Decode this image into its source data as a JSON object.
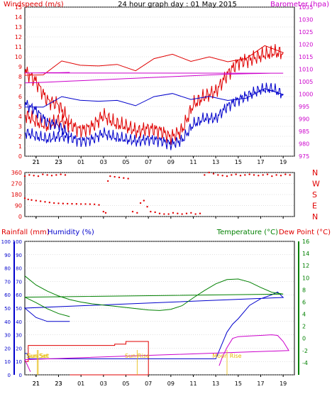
{
  "chart_data": [
    {
      "type": "line",
      "title": "24 hour graph day : 01 May 2015",
      "ylabel_left": "Windspeed (m/s)",
      "ylabel_right": "Barometer (hpa)",
      "ylim_left": [
        0,
        15
      ],
      "ylim_right": [
        975,
        1035
      ],
      "yticks_left": [
        "0",
        "1",
        "2",
        "3",
        "4",
        "5",
        "6",
        "7",
        "8",
        "9",
        "10",
        "11",
        "12",
        "13",
        "14",
        "15"
      ],
      "yticks_right": [
        "975",
        "980",
        "985",
        "990",
        "995",
        "1000",
        "1005",
        "1010",
        "1015",
        "1020",
        "1025",
        "1030",
        "1035"
      ],
      "x_hours": [
        20,
        21,
        22,
        23,
        0,
        1,
        2,
        3,
        4,
        5,
        6,
        7,
        8,
        9,
        10,
        11,
        12,
        13,
        14,
        15,
        16,
        17,
        18,
        19,
        20,
        21,
        22,
        23,
        24
      ],
      "xticks": [
        "21",
        "23",
        "01",
        "03",
        "05",
        "07",
        "09",
        "11",
        "13",
        "15",
        "17",
        "19",
        "21",
        "23"
      ],
      "series": [
        {
          "name": "Gust",
          "color": "#e00000",
          "axis": "left",
          "values": [
            4.2,
            3.5,
            3.0,
            3.6,
            3.2,
            2.6,
            3.0,
            4.1,
            3.3,
            3.0,
            2.5,
            2.8,
            2.6,
            1.9,
            2.6,
            5.2,
            6.0,
            6.5,
            8.2,
            9.5,
            9.7,
            10.1,
            10.4,
            10.4,
            8.6,
            7.5,
            5.6,
            5.2,
            3.4
          ]
        },
        {
          "name": "Average",
          "color": "#0000cc",
          "axis": "left",
          "values": [
            2.4,
            2.0,
            1.7,
            2.0,
            1.9,
            1.5,
            1.7,
            2.3,
            1.9,
            1.7,
            1.5,
            1.7,
            1.6,
            1.2,
            1.6,
            3.2,
            3.8,
            3.8,
            5.0,
            5.7,
            6.2,
            6.7,
            6.8,
            6.2,
            5.3,
            4.6,
            3.4,
            3.1,
            2.0
          ]
        },
        {
          "name": "Barometer",
          "color": "#cc00cc",
          "axis": "right",
          "values": [
            1004.5,
            1004.6,
            1004.8,
            1005.0,
            1005.2,
            1005.4,
            1005.6,
            1005.8,
            1006.0,
            1006.2,
            1006.4,
            1006.6,
            1006.8,
            1007.0,
            1007.2,
            1007.4,
            1007.6,
            1007.8,
            1008.0,
            1008.1,
            1008.2,
            1008.3,
            1008.4,
            1008.4,
            1008.5,
            1008.5,
            1008.6,
            1008.6,
            1008.7
          ]
        }
      ]
    },
    {
      "type": "scatter",
      "ylabel_right": [
        "N",
        "W",
        "S",
        "E",
        "N"
      ],
      "yticks_left": [
        "0",
        "90",
        "180",
        "270",
        "360"
      ],
      "ylim": [
        0,
        360
      ],
      "xticks": [
        "21",
        "23",
        "01",
        "03",
        "05",
        "07",
        "09",
        "11",
        "13",
        "15",
        "17",
        "19",
        "21",
        "23"
      ],
      "series": [
        {
          "name": "Wind direction",
          "color": "#e00000",
          "x": [
            20,
            20.3,
            20.6,
            21,
            21.4,
            21.8,
            22.2,
            22.6,
            23,
            23.4,
            23.8,
            0.2,
            0.6,
            1,
            1.4,
            1.8,
            2.2,
            2.6,
            3.0,
            3.2,
            3.4,
            3.6,
            4.0,
            4.4,
            4.8,
            5.2,
            5.6,
            6.0,
            6.3,
            6.6,
            6.9,
            7.2,
            7.6,
            8,
            8.4,
            8.8,
            9.2,
            9.6,
            10,
            10.4,
            10.8,
            11.2,
            11.6,
            12,
            12.4,
            12.8,
            13.2,
            13.6,
            14,
            14.4,
            14.8,
            15.2,
            15.6,
            16,
            16.4,
            16.8,
            17.2,
            17.6,
            18,
            18.4,
            18.8,
            19.2,
            19.6,
            20,
            20.4,
            20.8,
            21.2,
            21.6,
            22,
            22.4,
            22.8,
            23.2,
            23.6
          ],
          "y": [
            150,
            140,
            135,
            130,
            125,
            120,
            115,
            110,
            108,
            106,
            105,
            104,
            103,
            102,
            102,
            101,
            100,
            95,
            40,
            30,
            290,
            330,
            325,
            320,
            315,
            310,
            40,
            30,
            110,
            130,
            80,
            40,
            35,
            25,
            20,
            20,
            30,
            25,
            20,
            25,
            30,
            20,
            25,
            340,
            360,
            350,
            340,
            335,
            330,
            340,
            345,
            335,
            340,
            345,
            340,
            335,
            340,
            345,
            330,
            340,
            335,
            345,
            340,
            330,
            340,
            335,
            330,
            345,
            340,
            335,
            340,
            345,
            340
          ]
        }
      ]
    },
    {
      "type": "line",
      "ylabel_left": [
        "Rainfall (mm)",
        "Humidity (%)"
      ],
      "ylabel_right": [
        "Temperature (°C)",
        "Dew Point (°C)"
      ],
      "ylim_left": [
        0,
        100
      ],
      "ylim_right": [
        -6,
        16
      ],
      "yticks_left": [
        "0",
        "10",
        "20",
        "30",
        "40",
        "50",
        "60",
        "70",
        "80",
        "90",
        "100"
      ],
      "yticks_right": [
        "-4",
        "-2",
        "0",
        "2",
        "4",
        "6",
        "8",
        "10",
        "12",
        "14",
        "16"
      ],
      "xticks": [
        "21",
        "23",
        "01",
        "03",
        "05",
        "07",
        "09",
        "11",
        "13",
        "15",
        "17",
        "19",
        "21",
        "23"
      ],
      "annotations": [
        "Sun Set",
        "Sun Rise",
        "Moon Rise",
        "Moon Set",
        "Sun Set"
      ],
      "series": [
        {
          "name": "Rainfall",
          "color": "#e00000",
          "x": [
            20,
            20.3,
            20.3,
            4,
            4,
            5,
            5,
            7,
            7,
            24
          ],
          "values": [
            10,
            10,
            22,
            22,
            23,
            23,
            25,
            25,
            0,
            0
          ]
        },
        {
          "name": "Humidity",
          "color": "#0000cc",
          "x": [
            20,
            20.2,
            20.4,
            21,
            22,
            23,
            0,
            1,
            2,
            3,
            4,
            5,
            6,
            7,
            8,
            9,
            10,
            11,
            12,
            13,
            13.5,
            14,
            14.5,
            15,
            16,
            17,
            18,
            18.5,
            19,
            20,
            21,
            22,
            23,
            24
          ],
          "values": [
            16,
            16,
            12,
            12,
            12,
            12,
            12,
            12,
            12,
            12,
            12,
            12,
            12,
            12,
            12,
            12,
            12,
            12,
            12,
            12,
            22,
            32,
            38,
            42,
            52,
            57,
            60,
            62,
            58,
            50,
            43,
            40,
            40,
            40
          ]
        },
        {
          "name": "Temperature",
          "color": "#008000",
          "axis": "right",
          "x": [
            20,
            21,
            22,
            23,
            0,
            1,
            2,
            3,
            4,
            5,
            6,
            7,
            8,
            9,
            10,
            11,
            12,
            13,
            14,
            15,
            16,
            17,
            18,
            19,
            20,
            21,
            22,
            23,
            24
          ],
          "values": [
            10.3,
            8.8,
            7.8,
            7.0,
            6.4,
            6.0,
            5.7,
            5.5,
            5.3,
            5.1,
            4.9,
            4.7,
            4.6,
            4.8,
            5.4,
            6.7,
            7.9,
            9.0,
            9.7,
            9.8,
            9.3,
            8.4,
            7.6,
            7.3,
            6.8,
            5.9,
            4.9,
            4.1,
            3.6
          ]
        },
        {
          "name": "Dew Point",
          "color": "#cc00cc",
          "axis": "right",
          "x": [
            13.3,
            13.6,
            14,
            14.5,
            15,
            16,
            17,
            18,
            18.5,
            19,
            19.5,
            20,
            20.5
          ],
          "values": [
            -4.5,
            -3.0,
            -1.5,
            0,
            0.3,
            0.4,
            0.5,
            0.6,
            0.5,
            -0.5,
            -2.0,
            -3.5,
            -5.5
          ]
        }
      ]
    }
  ],
  "colors": {
    "panel_bg": "#ffffff",
    "grid": "#c0c0c0",
    "wind_red": "#e00000",
    "wind_blue": "#0000cc",
    "baro": "#cc00cc",
    "temp": "#008000",
    "sun": "#e6b800"
  }
}
